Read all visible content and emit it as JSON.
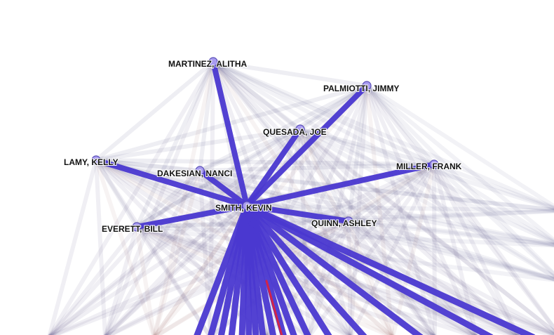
{
  "graph": {
    "nodes": [
      {
        "id": "martinez",
        "label": "MARTINEZ, ALITHA"
      },
      {
        "id": "palmiotti",
        "label": "PALMIOTTI, JIMMY"
      },
      {
        "id": "quesada",
        "label": "QUESADA, JOE"
      },
      {
        "id": "lamy",
        "label": "LAMY, KELLY"
      },
      {
        "id": "dakesian",
        "label": "DAKESIAN, NANCI"
      },
      {
        "id": "miller",
        "label": "MILLER, FRANK"
      },
      {
        "id": "smith",
        "label": "SMITH, KEVIN"
      },
      {
        "id": "quinn",
        "label": "QUINN, ASHLEY"
      },
      {
        "id": "everett",
        "label": "EVERETT, BILL"
      }
    ],
    "strong_edges": [
      [
        "smith",
        "martinez"
      ],
      [
        "smith",
        "palmiotti"
      ],
      [
        "smith",
        "quesada"
      ],
      [
        "smith",
        "lamy"
      ],
      [
        "smith",
        "miller"
      ],
      [
        "smith",
        "everett"
      ],
      [
        "smith",
        "quinn"
      ],
      [
        "smith",
        "dakesian"
      ]
    ],
    "colors": {
      "strong_edge": "#4a38d0",
      "faint_edge": "#2a2060",
      "faint_edge_alt": "#8a5a50",
      "node_fill": "#a99cf0",
      "highlight": "#e0203a"
    }
  }
}
